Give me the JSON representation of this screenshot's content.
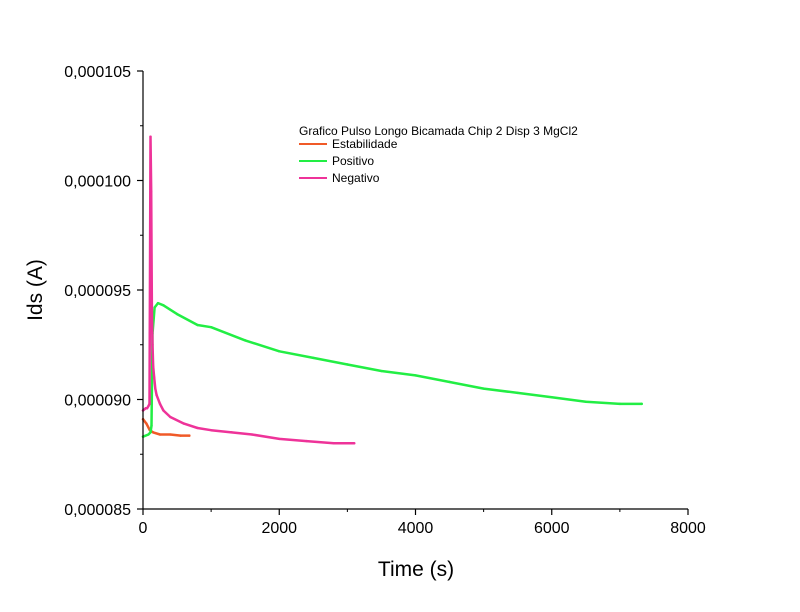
{
  "chart_data": {
    "type": "line",
    "xlabel": "Time (s)",
    "ylabel": "Ids (A)",
    "xlim": [
      0,
      8000
    ],
    "ylim": [
      8.5e-05,
      0.000105
    ],
    "x_ticks": [
      0,
      2000,
      4000,
      6000,
      8000
    ],
    "x_tick_labels": [
      "0",
      "2000",
      "4000",
      "6000",
      "8000"
    ],
    "y_ticks": [
      8.5e-05,
      9e-05,
      9.5e-05,
      0.0001,
      0.000105
    ],
    "y_tick_labels": [
      "0,000085",
      "0,000090",
      "0,000095",
      "0,000100",
      "0,000105"
    ],
    "grid": false,
    "legend": {
      "title": "Grafico Pulso Longo Bicamada Chip 2 Disp 3 MgCl2",
      "placement": "top-center"
    },
    "series": [
      {
        "name": "Estabilidade",
        "color": "#f05a28",
        "x": [
          0,
          50,
          100,
          150,
          250,
          400,
          550,
          680
        ],
        "y": [
          8.91e-05,
          8.89e-05,
          8.86e-05,
          8.85e-05,
          8.84e-05,
          8.84e-05,
          8.835e-05,
          8.835e-05
        ]
      },
      {
        "name": "Positivo",
        "color": "#22ee44",
        "x": [
          0,
          80,
          110,
          125,
          140,
          170,
          220,
          300,
          500,
          800,
          1000,
          1500,
          2000,
          2500,
          3000,
          3500,
          4000,
          4500,
          5000,
          5500,
          6000,
          6500,
          7000,
          7320
        ],
        "y": [
          8.83e-05,
          8.84e-05,
          8.85e-05,
          8.88e-05,
          9.3e-05,
          9.42e-05,
          9.44e-05,
          9.43e-05,
          9.39e-05,
          9.34e-05,
          9.33e-05,
          9.27e-05,
          9.22e-05,
          9.19e-05,
          9.16e-05,
          9.13e-05,
          9.11e-05,
          9.08e-05,
          9.05e-05,
          9.03e-05,
          9.01e-05,
          8.99e-05,
          8.98e-05,
          8.98e-05
        ]
      },
      {
        "name": "Negativo",
        "color": "#ee3399",
        "x": [
          0,
          40,
          60,
          80,
          95,
          110,
          120,
          130,
          140,
          150,
          165,
          180,
          200,
          250,
          300,
          400,
          600,
          800,
          1000,
          1300,
          1600,
          2000,
          2400,
          2800,
          3100
        ],
        "y": [
          8.95e-05,
          8.96e-05,
          8.96e-05,
          8.97e-05,
          8.98e-05,
          0.000102,
          9.95e-05,
          9.4e-05,
          9.25e-05,
          9.15e-05,
          9.1e-05,
          9.05e-05,
          9.02e-05,
          8.98e-05,
          8.95e-05,
          8.92e-05,
          8.89e-05,
          8.87e-05,
          8.86e-05,
          8.85e-05,
          8.84e-05,
          8.82e-05,
          8.81e-05,
          8.8e-05,
          8.8e-05
        ]
      }
    ]
  }
}
